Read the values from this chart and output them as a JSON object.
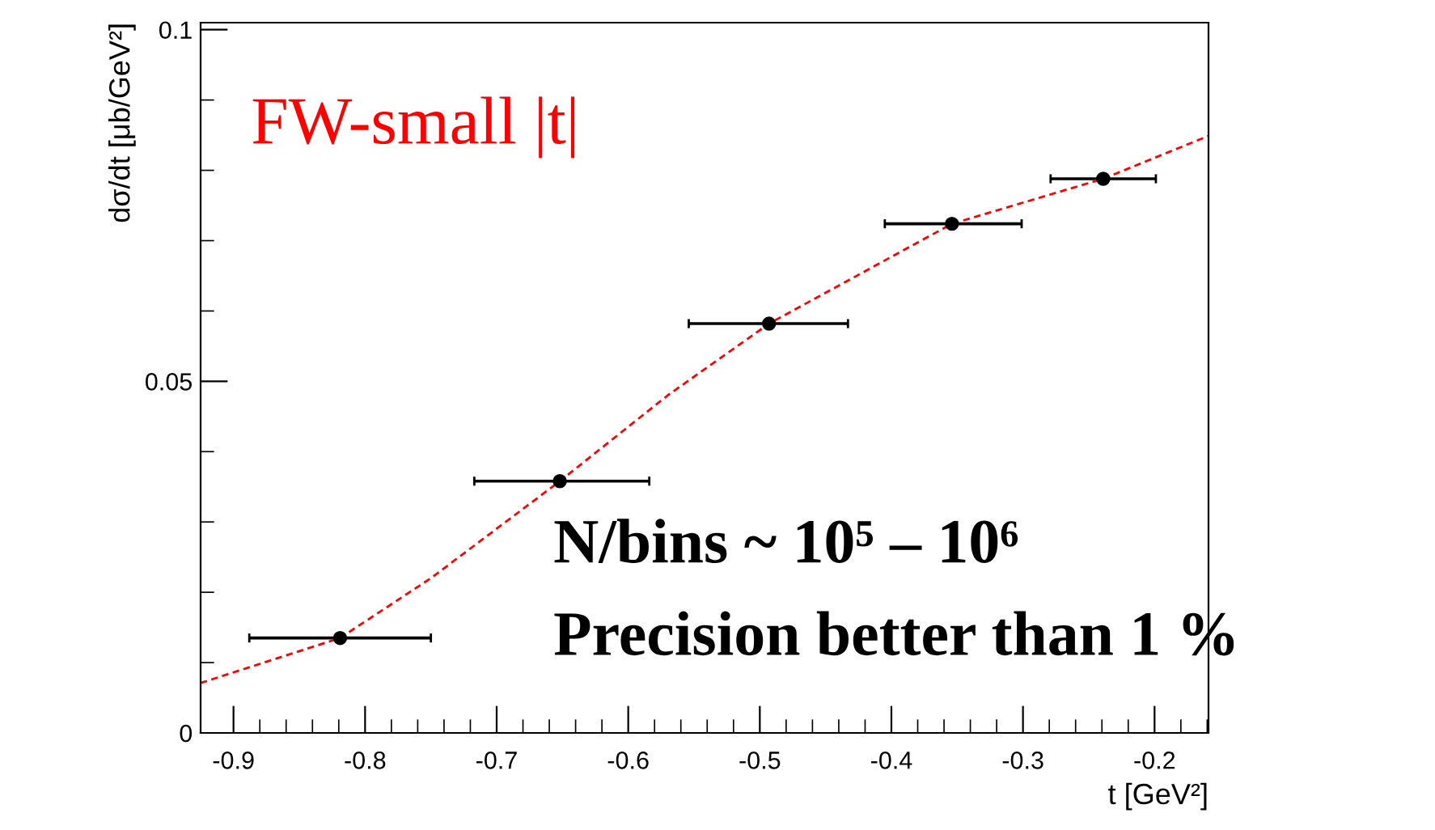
{
  "chart_data": {
    "type": "scatter",
    "xlabel": "t [GeV²]",
    "ylabel": "dσ/dt [μb/GeV²]",
    "x": [
      -0.819,
      -0.652,
      -0.493,
      -0.354,
      -0.239
    ],
    "series": [
      {
        "marker": "circle",
        "color": "#000000",
        "values": [
          0.0135,
          0.0358,
          0.0582,
          0.0724,
          0.0788
        ],
        "xerrors": [
          [
            -0.888,
            -0.75
          ],
          [
            -0.717,
            -0.584
          ],
          [
            -0.554,
            -0.433
          ],
          [
            -0.405,
            -0.301
          ],
          [
            -0.279,
            -0.199
          ]
        ]
      },
      {
        "type": "line",
        "color": "#ff0000",
        "line_style": "dashed",
        "x": [
          -0.925,
          -0.819,
          -0.75,
          -0.652,
          -0.57,
          -0.493,
          -0.354,
          -0.239,
          -0.159
        ],
        "values": [
          0.0071,
          0.0135,
          0.022,
          0.0358,
          0.048,
          0.0582,
          0.0724,
          0.0788,
          0.0849
        ]
      }
    ],
    "annotations": [
      "FW-small |t|",
      "N/bins ~ 10⁵ – 10⁶",
      "Precision better than 1 %"
    ],
    "xlim": [
      -0.925,
      -0.159
    ],
    "ylim": [
      0,
      0.101
    ],
    "xticks": [
      -0.9,
      -0.8,
      -0.7,
      -0.6,
      -0.5,
      -0.4,
      -0.3,
      -0.2
    ],
    "yticks": [
      0,
      0.05,
      0.1
    ],
    "grid": false,
    "legend": false
  }
}
